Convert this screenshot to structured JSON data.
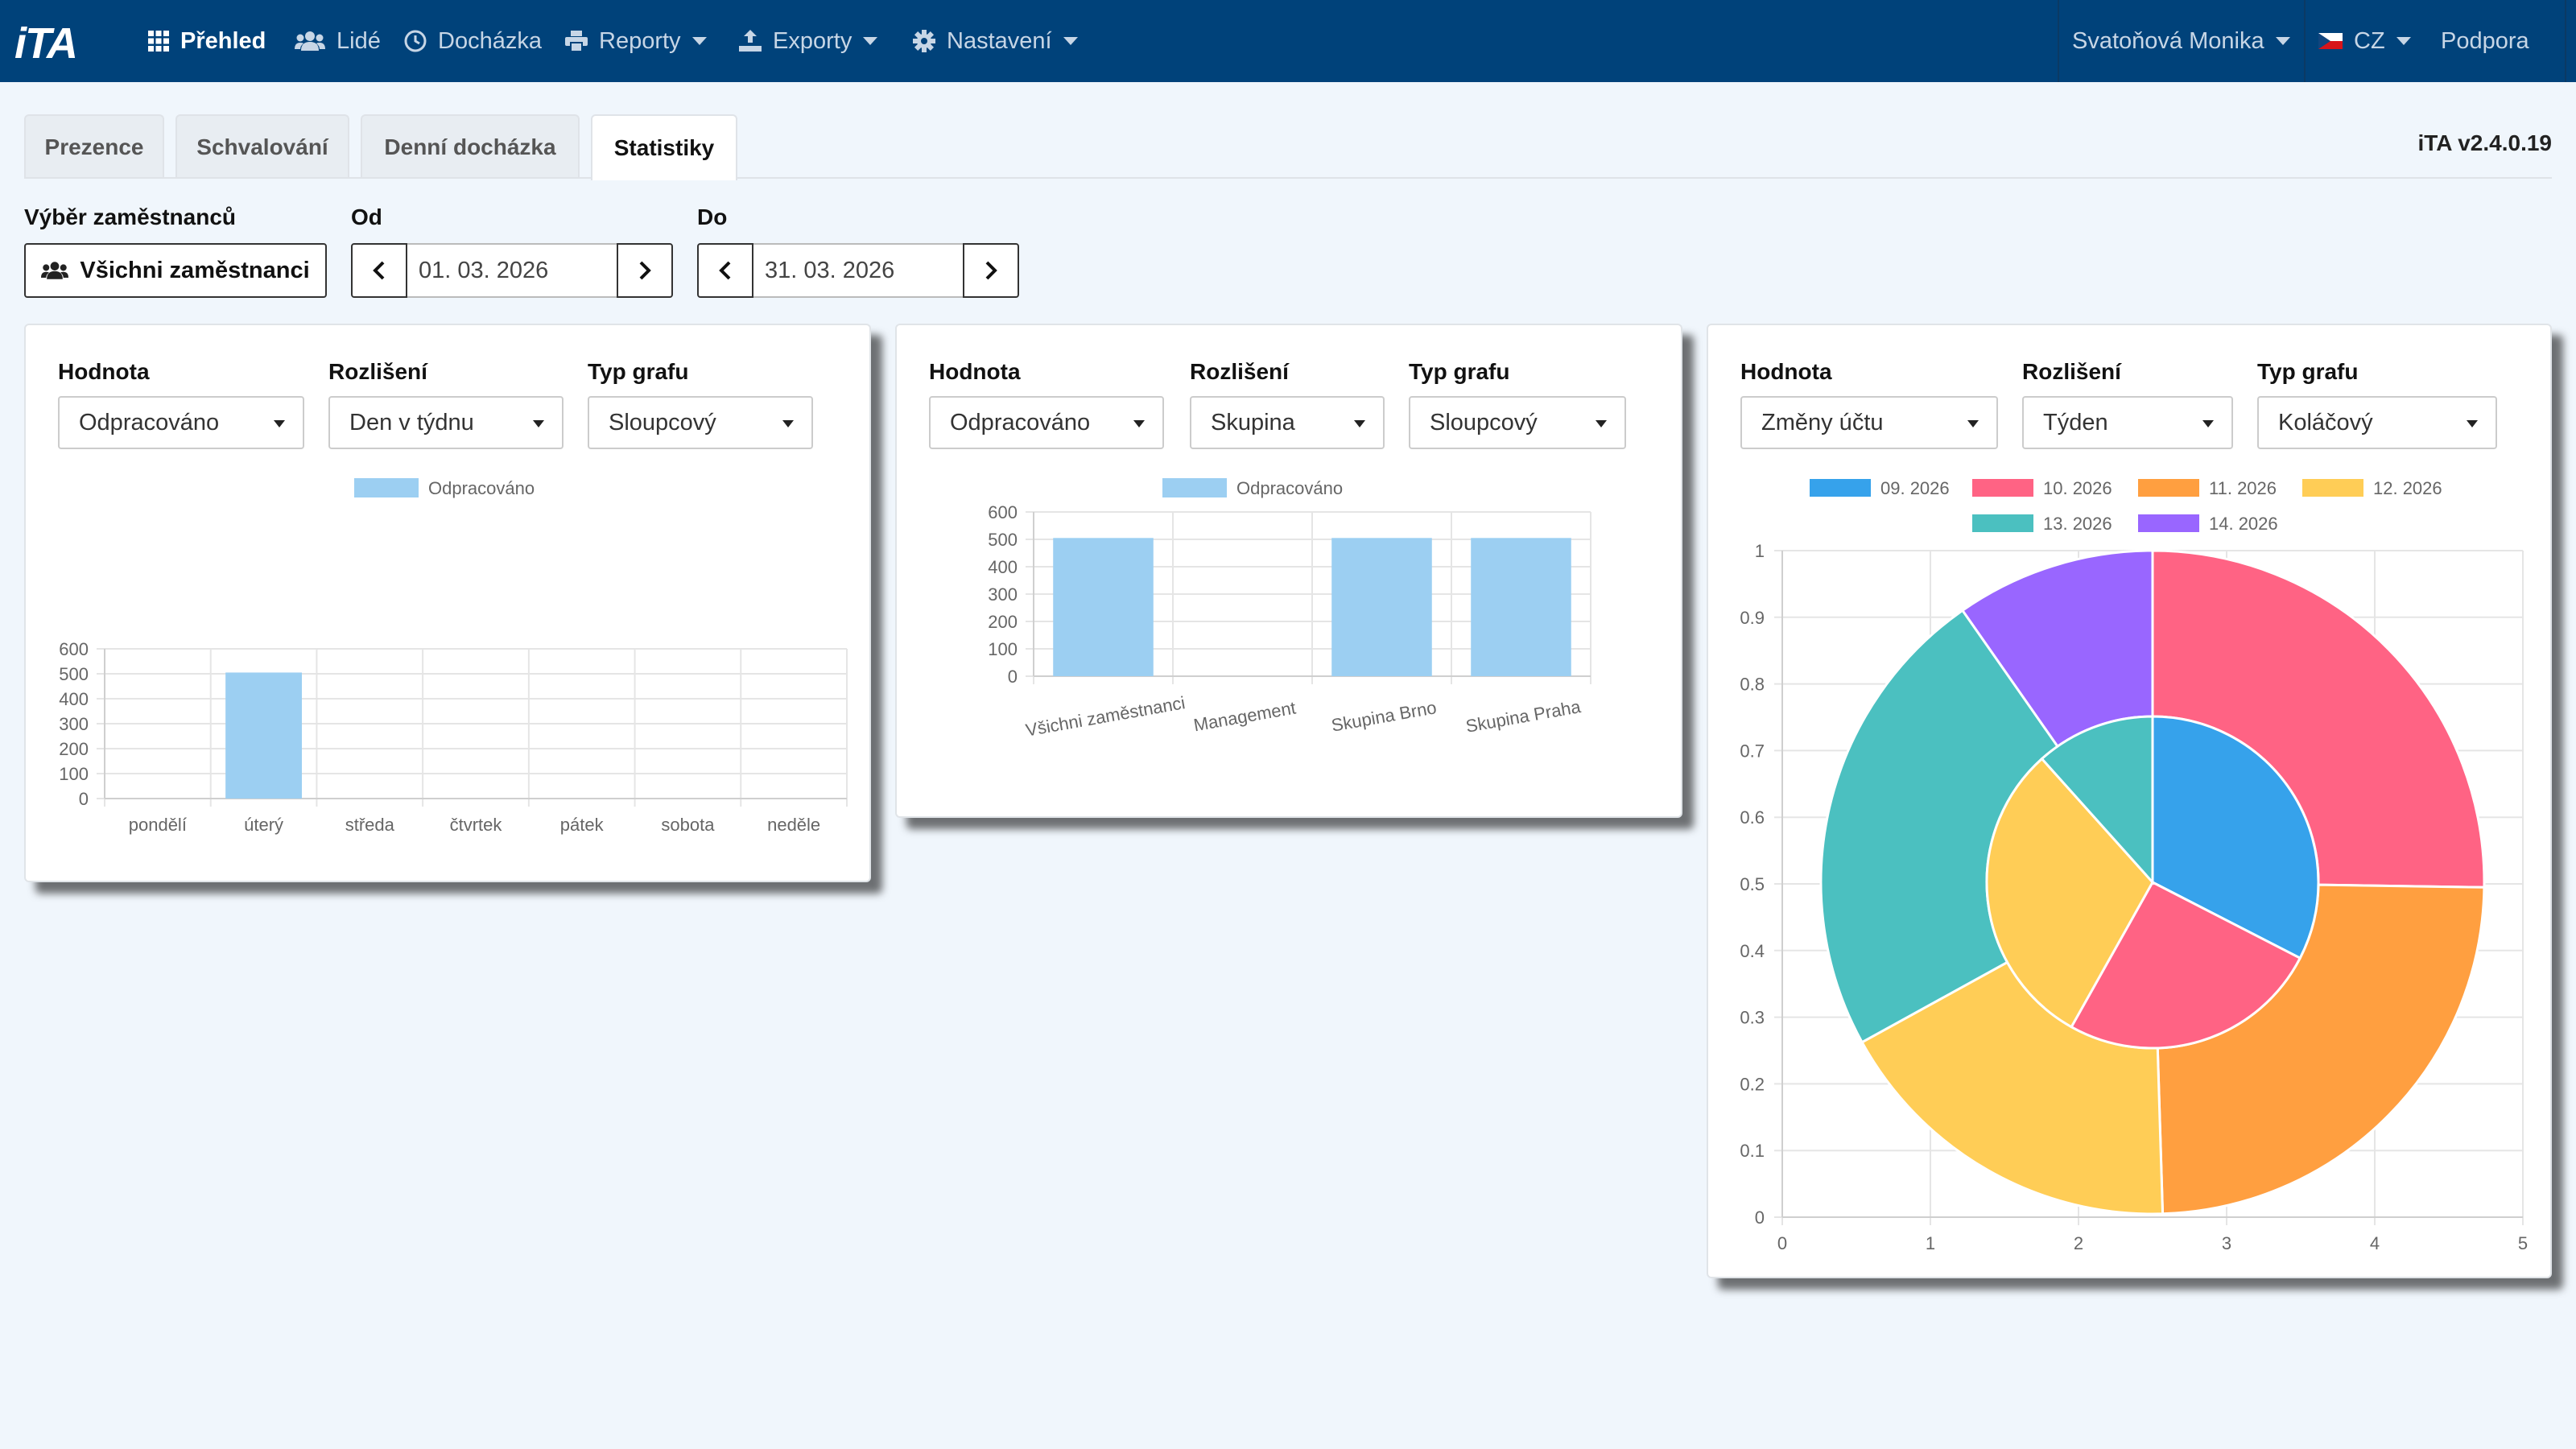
{
  "nav": {
    "logo": "iTA",
    "items": [
      {
        "label": "Přehled"
      },
      {
        "label": "Lidé"
      },
      {
        "label": "Docházka"
      },
      {
        "label": "Reporty"
      },
      {
        "label": "Exporty"
      },
      {
        "label": "Nastavení"
      }
    ],
    "user": "Svatoňová Monika",
    "language": "CZ",
    "support": "Podpora"
  },
  "tabs": [
    {
      "label": "Prezence"
    },
    {
      "label": "Schvalování"
    },
    {
      "label": "Denní docházka"
    },
    {
      "label": "Statistiky"
    }
  ],
  "version": "iTA v2.4.0.19",
  "filters": {
    "employees_label": "Výběr zaměstnanců",
    "employees_button": "Všichni zaměstnanci",
    "from_label": "Od",
    "from_value": "01. 03. 2026",
    "to_label": "Do",
    "to_value": "31. 03. 2026"
  },
  "panels": [
    {
      "value_label": "Hodnota",
      "value": "Odpracováno",
      "resolution_label": "Rozlišení",
      "resolution": "Den v týdnu",
      "type_label": "Typ grafu",
      "type": "Sloupcový"
    },
    {
      "value_label": "Hodnota",
      "value": "Odpracováno",
      "resolution_label": "Rozlišení",
      "resolution": "Skupina",
      "type_label": "Typ grafu",
      "type": "Sloupcový"
    },
    {
      "value_label": "Hodnota",
      "value": "Změny účtu",
      "resolution_label": "Rozlišení",
      "resolution": "Týden",
      "type_label": "Typ grafu",
      "type": "Koláčový"
    }
  ],
  "colors": {
    "navbar": "#00427a",
    "bar": "#9ccff2",
    "pie": [
      "#36a2eb",
      "#ff6384",
      "#ff9f40",
      "#ffcd56",
      "#4bc0c0",
      "#9966ff"
    ]
  },
  "chart_data": [
    {
      "type": "bar",
      "categories": [
        "pondělí",
        "úterý",
        "středa",
        "čtvrtek",
        "pátek",
        "sobota",
        "neděle"
      ],
      "series": [
        {
          "name": "Odpracováno",
          "values": [
            0,
            505,
            0,
            0,
            0,
            0,
            0
          ]
        }
      ],
      "ylim": [
        0,
        600
      ],
      "yticks": [
        0,
        100,
        200,
        300,
        400,
        500,
        600
      ],
      "legend": "top",
      "grid": true
    },
    {
      "type": "bar",
      "categories": [
        "Všichni zaměstnanci",
        "Management",
        "Skupina Brno",
        "Skupina Praha"
      ],
      "series": [
        {
          "name": "Odpracováno",
          "values": [
            505,
            0,
            505,
            505
          ]
        }
      ],
      "ylim": [
        0,
        600
      ],
      "yticks": [
        0,
        100,
        200,
        300,
        400,
        500,
        600
      ],
      "legend": "top",
      "grid": true
    },
    {
      "type": "pie",
      "legend_labels": [
        "09. 2026",
        "10. 2026",
        "11. 2026",
        "12. 2026",
        "13. 2026",
        "14. 2026"
      ],
      "rings": [
        {
          "ring": "outer",
          "values": [
            0,
            26,
            25,
            18,
            24,
            10
          ]
        },
        {
          "ring": "inner",
          "values": [
            28,
            22,
            0,
            26,
            10,
            0
          ]
        }
      ],
      "xticks": [
        0,
        1,
        2,
        3,
        4,
        5
      ],
      "yticks": [
        0,
        0.1,
        0.2,
        0.3,
        0.4,
        0.5,
        0.6,
        0.7,
        0.8,
        0.9,
        1
      ],
      "legend": "top",
      "grid": true
    }
  ]
}
